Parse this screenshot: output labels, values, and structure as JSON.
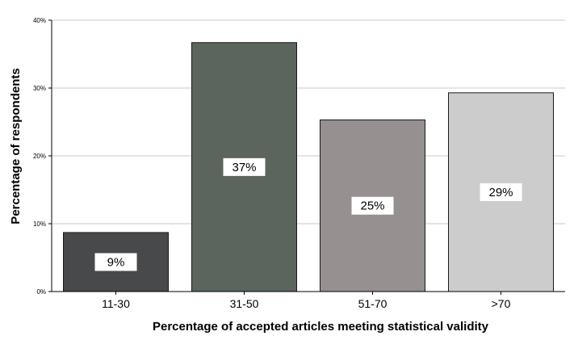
{
  "chart_data": {
    "type": "bar",
    "title": "",
    "xlabel": "Percentage of accepted articles meeting statistical validity",
    "ylabel": "Percentage of respondents",
    "categories": [
      "11-30",
      "31-50",
      "51-70",
      ">70"
    ],
    "values": [
      8.7,
      36.7,
      25.3,
      29.3
    ],
    "data_labels": [
      "9%",
      "37%",
      "25%",
      "29%"
    ],
    "bar_colors": [
      "#48494b",
      "#5c645e",
      "#979090",
      "#cccccc"
    ],
    "ylim": [
      0,
      40
    ],
    "y_ticks": [
      0,
      10,
      20,
      30,
      40
    ],
    "y_tick_labels": [
      "0%",
      "10%",
      "20%",
      "30%",
      "40%"
    ],
    "grid": true,
    "legend": "none"
  }
}
